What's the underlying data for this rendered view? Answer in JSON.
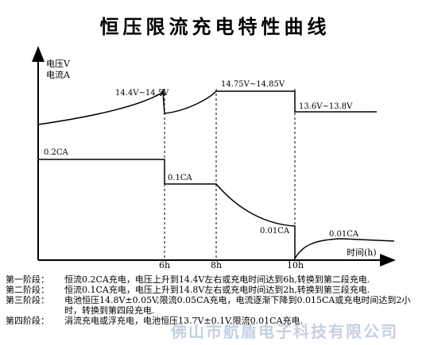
{
  "title": "恒压限流充电特性曲线",
  "axes": {
    "y_label_voltage": "电压V",
    "y_label_current": "电流A",
    "x_label": "时间(h)",
    "x_ticks": [
      "6h",
      "8h",
      "10h"
    ]
  },
  "voltage_labels": {
    "stage1": "14.4V~14.5V",
    "stage2": "14.75V~14.85V",
    "stage3": "13.6V~13.8V"
  },
  "current_labels": {
    "stage1": "0.2CA",
    "stage2": "0.1CA",
    "stage3": "0.01CA",
    "stage4": "0.01CA"
  },
  "steps": [
    {
      "head": "第一阶段：",
      "text": "恒流0.2CA充电，电压上升到14.4V左右或充电时间达到6h,转换到第二段充电."
    },
    {
      "head": "第二阶段：",
      "text": "恒流0.1CA充电，电压上升到14.8V左右或充电时间达到2h,转换到第三段充电."
    },
    {
      "head": "第三阶段：",
      "text": "电池恒压14.8V±0.05V,限流0.05CA充电，电流逐渐下降到0.015CA或充电时间达到2小时，转换到第四段充电."
    },
    {
      "head": "第四阶段：",
      "text": "涓流充电或浮充电，电池恒压13.7V±0.1V,限流0.01CA充电."
    }
  ],
  "watermark": "佛山市航盾电子科技有限公司",
  "colors": {
    "line": "#000000",
    "watermark": "#96aac8"
  }
}
